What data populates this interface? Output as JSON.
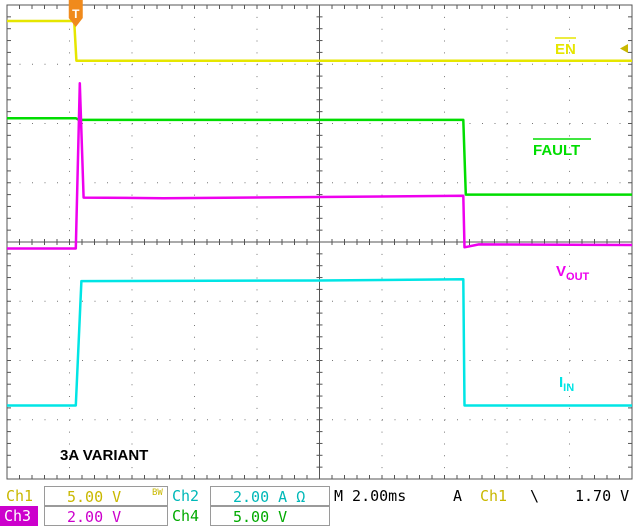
{
  "chart_data": {
    "type": "line",
    "title": "",
    "xlabel": "",
    "ylabel": "",
    "x_divisions": 10,
    "y_divisions": 8,
    "time_per_div_ms": 2.0,
    "xlim_ms": [
      0,
      20
    ],
    "trigger_time_ms": 2.2,
    "annotation": "3A VARIANT",
    "series": [
      {
        "name": "EN",
        "color": "#e6e600",
        "points": [
          [
            0,
            7.73
          ],
          [
            2.15,
            7.73
          ],
          [
            2.22,
            7.06
          ],
          [
            20,
            7.06
          ]
        ]
      },
      {
        "name": "FAULT",
        "color": "#00dd00",
        "points": [
          [
            0,
            6.09
          ],
          [
            2.2,
            6.09
          ],
          [
            2.3,
            6.06
          ],
          [
            14.6,
            6.06
          ],
          [
            14.68,
            4.8
          ],
          [
            20,
            4.8
          ]
        ]
      },
      {
        "name": "VOUT",
        "color": "#ee00ee",
        "points": [
          [
            0,
            3.89
          ],
          [
            2.2,
            3.89
          ],
          [
            2.33,
            6.68
          ],
          [
            2.45,
            4.75
          ],
          [
            5,
            4.74
          ],
          [
            10,
            4.76
          ],
          [
            14.6,
            4.78
          ],
          [
            14.64,
            3.91
          ],
          [
            15.1,
            3.96
          ],
          [
            20,
            3.95
          ]
        ]
      },
      {
        "name": "IIN",
        "color": "#00e5e5",
        "points": [
          [
            0,
            1.24
          ],
          [
            2.2,
            1.24
          ],
          [
            2.38,
            3.34
          ],
          [
            10,
            3.35
          ],
          [
            14.6,
            3.37
          ],
          [
            14.64,
            1.24
          ],
          [
            20,
            1.24
          ]
        ]
      }
    ],
    "labels": {
      "en": "EN",
      "fault": "FAULT",
      "vout_main": "V",
      "vout_sub": "OUT",
      "iin_main": "I",
      "iin_sub": "IN"
    }
  },
  "status_bar": {
    "ch1_label": "Ch1",
    "ch1_scale": "5.00 V",
    "bw_mark": "BW",
    "ch2_label": "Ch2",
    "ch2_scale": "2.00 A Ω",
    "timebase": "M 2.00ms",
    "trigger_mode": "A",
    "trigger_source": "Ch1",
    "trigger_slope": "\\",
    "trigger_level": "1.70 V",
    "ch3_label": "Ch3",
    "ch3_scale": "2.00 V",
    "ch4_label": "Ch4",
    "ch4_scale": "5.00 V",
    "color_ch1": "#c9b800",
    "color_ch2": "#00b8b8",
    "color_ch3": "#cc00cc",
    "color_ch4": "#00aa00"
  }
}
